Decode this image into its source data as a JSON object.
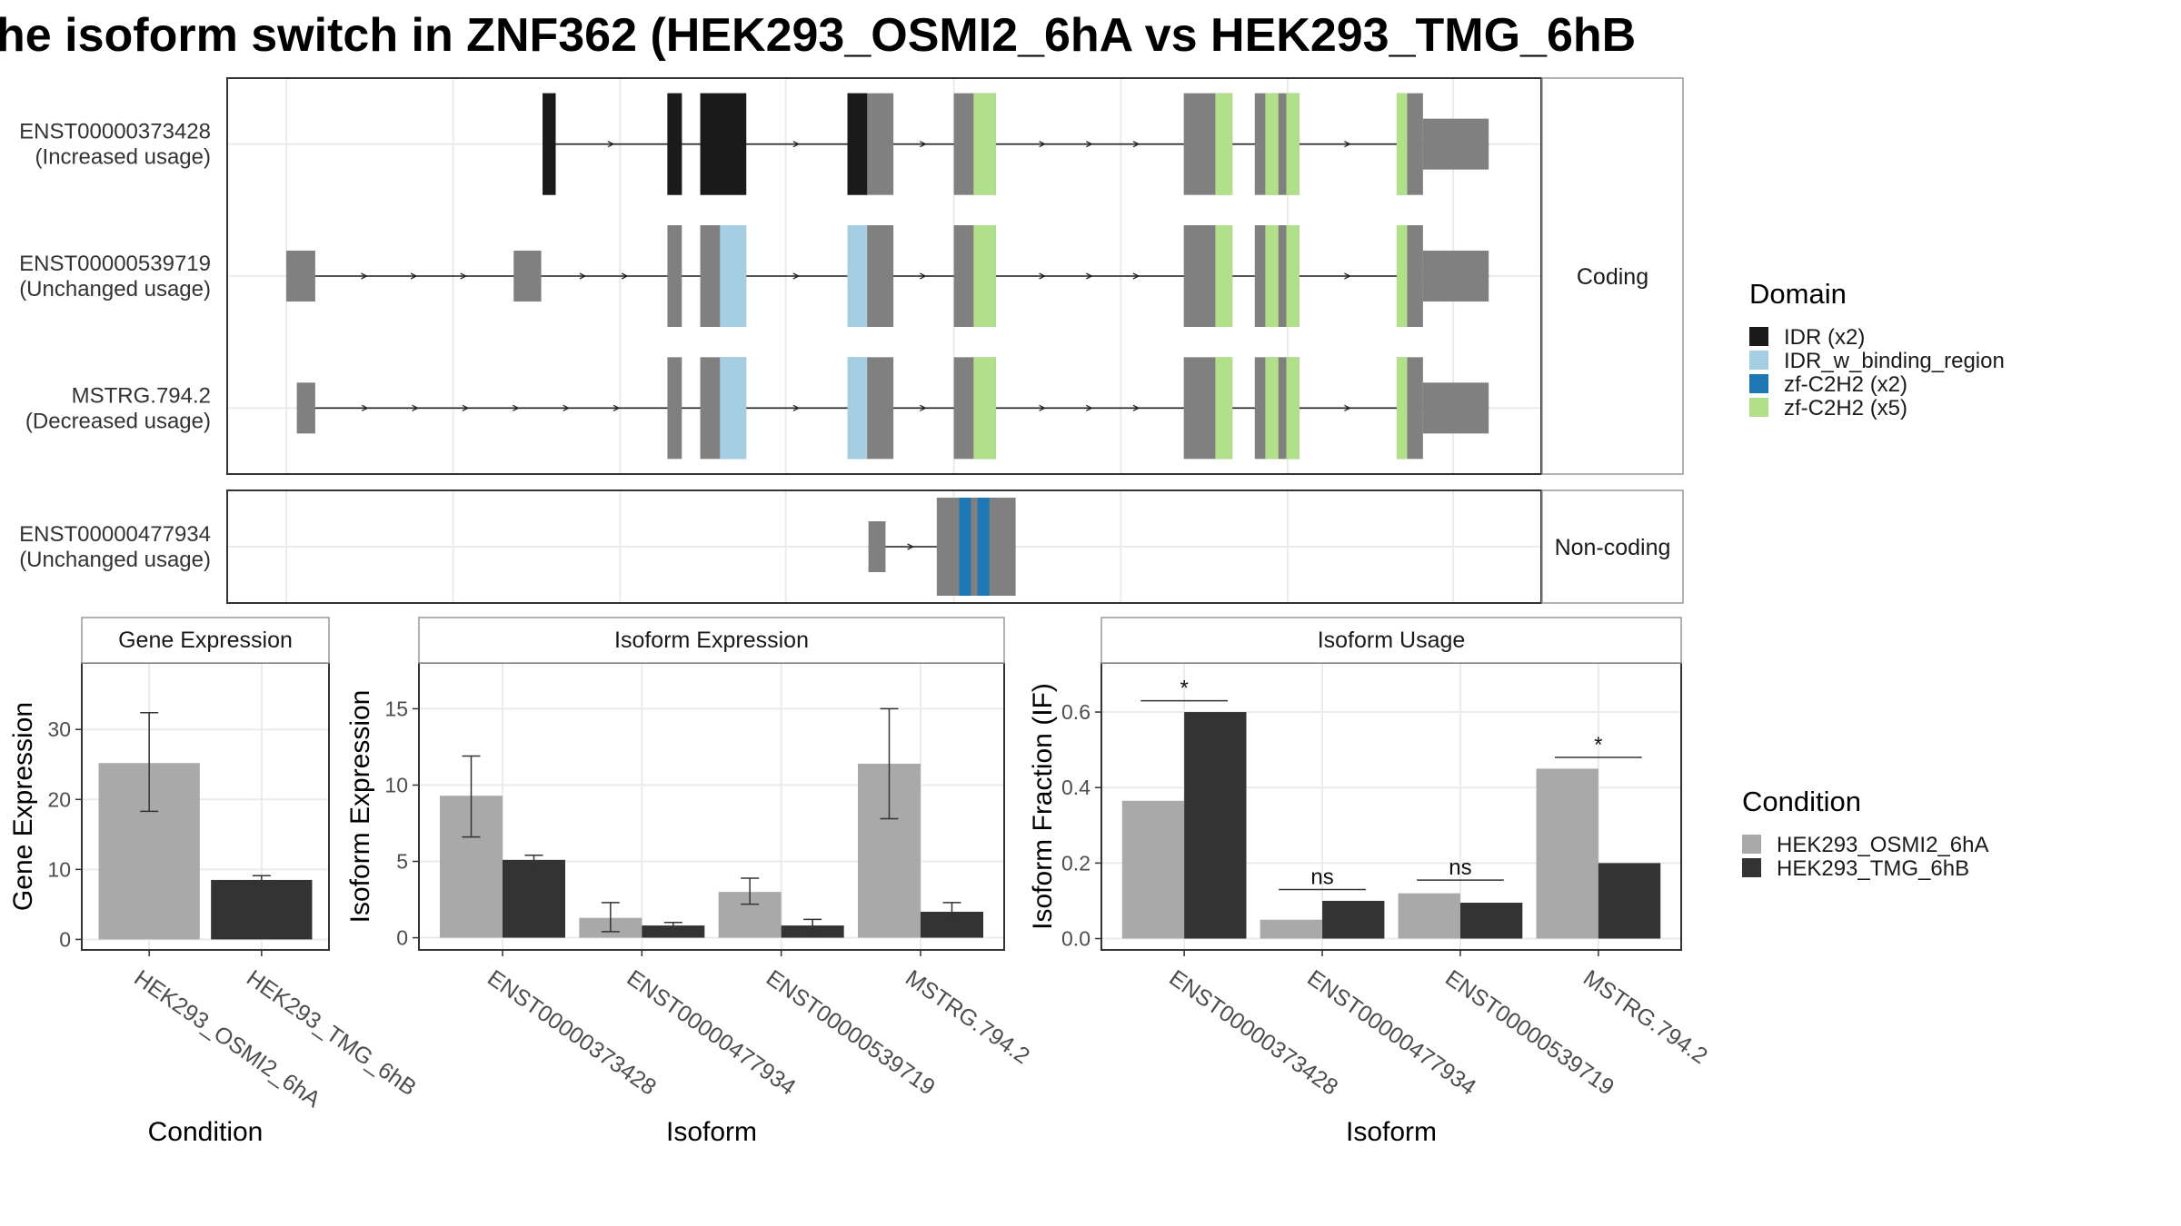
{
  "title": "he isoform switch in ZNF362 (HEK293_OSMI2_6hA vs HEK293_TMG_6hB",
  "colors": {
    "cond_a": "#a9a9a9",
    "cond_b": "#333333",
    "exon": "#808080",
    "strip_bg": "#ffffff",
    "grid": "#ebebeb",
    "panel_border": "#333333"
  },
  "domain_legend": {
    "title": "Domain",
    "items": [
      {
        "label": "IDR (x2)",
        "color": "#1a1a1a"
      },
      {
        "label": "IDR_w_binding_region",
        "color": "#a6cee3"
      },
      {
        "label": "zf-C2H2 (x2)",
        "color": "#1f78b4"
      },
      {
        "label": "zf-C2H2 (x5)",
        "color": "#b2df8a"
      }
    ]
  },
  "condition_legend": {
    "title": "Condition",
    "items": [
      {
        "label": "HEK293_OSMI2_6hA",
        "color": "#a9a9a9"
      },
      {
        "label": "HEK293_TMG_6hB",
        "color": "#333333"
      }
    ]
  },
  "transcript_groups": [
    {
      "label": "Coding",
      "transcripts": [
        {
          "id": "ENST00000373428",
          "usage": "(Increased usage)",
          "exons": [
            [
              0.24,
              0.25,
              "thin"
            ],
            [
              0.335,
              0.346,
              "thin"
            ],
            [
              0.36,
              0.395,
              "thin"
            ],
            [
              0.472,
              0.507,
              "thin"
            ],
            [
              0.553,
              0.585,
              "thin"
            ],
            [
              0.728,
              0.765,
              "thin"
            ],
            [
              0.782,
              0.816,
              "thin"
            ],
            [
              0.89,
              0.91,
              "thin"
            ],
            [
              0.91,
              0.96,
              "utr"
            ]
          ],
          "domains": [
            [
              0.24,
              0.25,
              "#1a1a1a"
            ],
            [
              0.335,
              0.346,
              "#1a1a1a"
            ],
            [
              0.36,
              0.395,
              "#1a1a1a"
            ],
            [
              0.472,
              0.487,
              "#1a1a1a"
            ],
            [
              0.568,
              0.585,
              "#b2df8a"
            ],
            [
              0.752,
              0.765,
              "#b2df8a"
            ],
            [
              0.79,
              0.8,
              "#b2df8a"
            ],
            [
              0.806,
              0.816,
              "#b2df8a"
            ],
            [
              0.89,
              0.898,
              "#b2df8a"
            ]
          ]
        },
        {
          "id": "ENST00000539719",
          "usage": "(Unchanged usage)",
          "exons": [
            [
              0.045,
              0.067,
              "utr"
            ],
            [
              0.218,
              0.239,
              "utr"
            ],
            [
              0.335,
              0.346,
              "thin"
            ],
            [
              0.36,
              0.395,
              "thin"
            ],
            [
              0.472,
              0.507,
              "thin"
            ],
            [
              0.553,
              0.585,
              "thin"
            ],
            [
              0.728,
              0.765,
              "thin"
            ],
            [
              0.782,
              0.816,
              "thin"
            ],
            [
              0.89,
              0.91,
              "thin"
            ],
            [
              0.91,
              0.96,
              "utr"
            ]
          ],
          "domains": [
            [
              0.375,
              0.395,
              "#a6cee3"
            ],
            [
              0.472,
              0.487,
              "#a6cee3"
            ],
            [
              0.568,
              0.585,
              "#b2df8a"
            ],
            [
              0.752,
              0.765,
              "#b2df8a"
            ],
            [
              0.79,
              0.8,
              "#b2df8a"
            ],
            [
              0.806,
              0.816,
              "#b2df8a"
            ],
            [
              0.89,
              0.898,
              "#b2df8a"
            ]
          ]
        },
        {
          "id": "MSTRG.794.2",
          "usage": "(Decreased usage)",
          "exons": [
            [
              0.053,
              0.067,
              "utr"
            ],
            [
              0.335,
              0.346,
              "thin"
            ],
            [
              0.36,
              0.395,
              "thin"
            ],
            [
              0.472,
              0.507,
              "thin"
            ],
            [
              0.553,
              0.585,
              "thin"
            ],
            [
              0.728,
              0.765,
              "thin"
            ],
            [
              0.782,
              0.816,
              "thin"
            ],
            [
              0.89,
              0.91,
              "thin"
            ],
            [
              0.91,
              0.96,
              "utr"
            ]
          ],
          "domains": [
            [
              0.375,
              0.395,
              "#a6cee3"
            ],
            [
              0.472,
              0.487,
              "#a6cee3"
            ],
            [
              0.568,
              0.585,
              "#b2df8a"
            ],
            [
              0.752,
              0.765,
              "#b2df8a"
            ],
            [
              0.79,
              0.8,
              "#b2df8a"
            ],
            [
              0.806,
              0.816,
              "#b2df8a"
            ],
            [
              0.89,
              0.898,
              "#b2df8a"
            ]
          ]
        }
      ]
    },
    {
      "label": "Non-coding",
      "transcripts": [
        {
          "id": "ENST00000477934",
          "usage": "(Unchanged usage)",
          "exons": [
            [
              0.488,
              0.501,
              "utr"
            ],
            [
              0.54,
              0.6,
              "thin"
            ]
          ],
          "domains": [
            [
              0.557,
              0.566,
              "#1f78b4"
            ],
            [
              0.571,
              0.58,
              "#1f78b4"
            ]
          ]
        }
      ]
    }
  ],
  "chart_data": [
    {
      "type": "bar",
      "title": "Gene Expression",
      "xlabel": "Condition",
      "ylabel": "Gene Expression",
      "categories": [
        "HEK293_OSMI2_6hA",
        "HEK293_TMG_6hB"
      ],
      "series": [
        {
          "name": "HEK293_OSMI2_6hA",
          "values": [
            25.2,
            null
          ],
          "err_low": [
            18.3,
            null
          ],
          "err_high": [
            32.4,
            null
          ]
        },
        {
          "name": "HEK293_TMG_6hB",
          "values": [
            null,
            8.5
          ],
          "err_low": [
            null,
            7.9
          ],
          "err_high": [
            null,
            9.1
          ]
        }
      ],
      "ylim": [
        -1.5,
        39.5
      ],
      "yticks": [
        0,
        10,
        20,
        30
      ]
    },
    {
      "type": "bar",
      "title": "Isoform Expression",
      "xlabel": "Isoform",
      "ylabel": "Isoform Expression",
      "categories": [
        "ENST00000373428",
        "ENST00000477934",
        "ENST00000539719",
        "MSTRG.794.2"
      ],
      "series": [
        {
          "name": "HEK293_OSMI2_6hA",
          "values": [
            9.3,
            1.3,
            3.0,
            11.4
          ],
          "err_low": [
            6.6,
            0.4,
            2.2,
            7.8
          ],
          "err_high": [
            11.9,
            2.3,
            3.9,
            15.0
          ]
        },
        {
          "name": "HEK293_TMG_6hB",
          "values": [
            5.1,
            0.8,
            0.8,
            1.7
          ],
          "err_low": [
            4.7,
            0.6,
            0.4,
            1.1
          ],
          "err_high": [
            5.4,
            1.0,
            1.2,
            2.3
          ]
        }
      ],
      "ylim": [
        -0.8,
        18.0
      ],
      "yticks": [
        0,
        5,
        10,
        15
      ]
    },
    {
      "type": "bar",
      "title": "Isoform Usage",
      "xlabel": "Isoform",
      "ylabel": "Isoform Fraction (IF)",
      "categories": [
        "ENST00000373428",
        "ENST00000477934",
        "ENST00000539719",
        "MSTRG.794.2"
      ],
      "series": [
        {
          "name": "HEK293_OSMI2_6hA",
          "values": [
            0.365,
            0.05,
            0.12,
            0.45
          ]
        },
        {
          "name": "HEK293_TMG_6hB",
          "values": [
            0.6,
            0.1,
            0.095,
            0.2
          ]
        }
      ],
      "significance": [
        "*",
        "ns",
        "ns",
        "*"
      ],
      "significance_y": [
        0.63,
        0.13,
        0.155,
        0.48
      ],
      "ylim": [
        -0.03,
        0.73
      ],
      "yticks": [
        0.0,
        0.2,
        0.4,
        0.6
      ],
      "ytick_labels": [
        "0.0",
        "0.2",
        "0.4",
        "0.6"
      ]
    }
  ]
}
